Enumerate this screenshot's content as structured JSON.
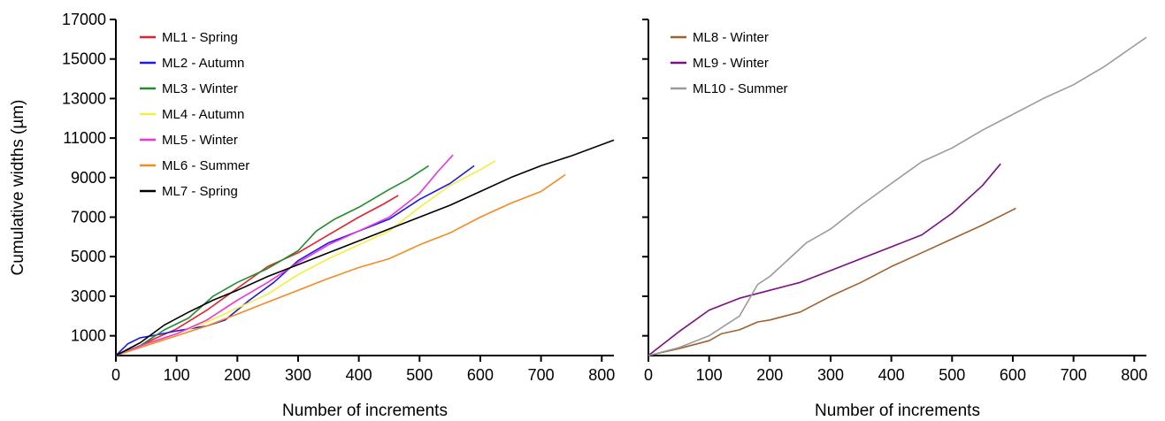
{
  "chart_data": [
    {
      "type": "line",
      "xlabel": "Number of increments",
      "ylabel": "Cumulative widths (µm)",
      "xlim": [
        0,
        820
      ],
      "ylim": [
        0,
        17000
      ],
      "xticks": [
        0,
        100,
        200,
        300,
        400,
        500,
        600,
        700,
        800
      ],
      "yticks": [
        1000,
        3000,
        5000,
        7000,
        9000,
        11000,
        13000,
        15000,
        17000
      ],
      "legend_position": "top-left",
      "series": [
        {
          "name": "ML1 - Spring",
          "color": "#e8212b",
          "x": [
            0,
            30,
            60,
            100,
            150,
            200,
            250,
            300,
            350,
            400,
            440,
            465
          ],
          "y": [
            0,
            350,
            800,
            1350,
            2300,
            3400,
            4500,
            5200,
            6100,
            7000,
            7650,
            8100
          ]
        },
        {
          "name": "ML2 - Autumn",
          "color": "#1a1aee",
          "x": [
            0,
            20,
            40,
            60,
            100,
            150,
            180,
            220,
            260,
            300,
            350,
            400,
            450,
            500,
            550,
            590
          ],
          "y": [
            0,
            600,
            900,
            1000,
            1250,
            1500,
            1800,
            2800,
            3700,
            4800,
            5700,
            6300,
            6900,
            7900,
            8700,
            9600
          ]
        },
        {
          "name": "ML3 - Winter",
          "color": "#1f8f2a",
          "x": [
            0,
            40,
            80,
            120,
            160,
            200,
            250,
            300,
            330,
            360,
            400,
            450,
            480,
            515
          ],
          "y": [
            0,
            500,
            1300,
            1900,
            3000,
            3700,
            4400,
            5300,
            6300,
            6900,
            7500,
            8400,
            8900,
            9600
          ]
        },
        {
          "name": "ML4 - Autumn",
          "color": "#f3f03a",
          "x": [
            0,
            50,
            100,
            150,
            200,
            250,
            300,
            350,
            400,
            450,
            500,
            550,
            600,
            625
          ],
          "y": [
            0,
            550,
            1100,
            1700,
            2400,
            3100,
            4100,
            4900,
            5600,
            6300,
            7500,
            8600,
            9400,
            9850
          ]
        },
        {
          "name": "ML5 - Winter",
          "color": "#f033e0",
          "x": [
            0,
            50,
            100,
            150,
            200,
            250,
            300,
            350,
            400,
            450,
            500,
            530,
            555
          ],
          "y": [
            0,
            600,
            1100,
            1800,
            2800,
            3700,
            4700,
            5600,
            6300,
            7000,
            8200,
            9300,
            10150
          ]
        },
        {
          "name": "ML6 - Summer",
          "color": "#f58a1f",
          "x": [
            0,
            50,
            100,
            150,
            200,
            250,
            300,
            350,
            400,
            450,
            500,
            550,
            600,
            650,
            700,
            740
          ],
          "y": [
            0,
            500,
            1000,
            1500,
            2100,
            2700,
            3300,
            3900,
            4450,
            4900,
            5600,
            6200,
            7000,
            7700,
            8300,
            9150
          ]
        },
        {
          "name": "ML7 - Spring",
          "color": "#000000",
          "x": [
            0,
            40,
            80,
            120,
            160,
            200,
            250,
            300,
            350,
            400,
            450,
            500,
            550,
            600,
            650,
            700,
            750,
            820
          ],
          "y": [
            0,
            650,
            1550,
            2200,
            2800,
            3300,
            4000,
            4600,
            5200,
            5800,
            6400,
            7000,
            7600,
            8300,
            9000,
            9600,
            10100,
            10900
          ]
        }
      ]
    },
    {
      "type": "line",
      "xlabel": "Number of increments",
      "ylabel": "",
      "xlim": [
        0,
        820
      ],
      "ylim": [
        0,
        17000
      ],
      "xticks": [
        0,
        100,
        200,
        300,
        400,
        500,
        600,
        700,
        800
      ],
      "yticks": [
        1000,
        3000,
        5000,
        7000,
        9000,
        11000,
        13000,
        15000,
        17000
      ],
      "legend_position": "top-left",
      "series": [
        {
          "name": "ML8 - Winter",
          "color": "#a0612d",
          "x": [
            0,
            50,
            100,
            120,
            150,
            180,
            200,
            250,
            300,
            350,
            400,
            450,
            500,
            550,
            605
          ],
          "y": [
            0,
            350,
            750,
            1100,
            1300,
            1700,
            1800,
            2200,
            3000,
            3700,
            4500,
            5200,
            5900,
            6600,
            7450
          ]
        },
        {
          "name": "ML9 - Winter",
          "color": "#7a0f86",
          "x": [
            0,
            50,
            100,
            150,
            200,
            250,
            300,
            350,
            400,
            450,
            500,
            550,
            580
          ],
          "y": [
            0,
            1200,
            2300,
            2900,
            3300,
            3700,
            4300,
            4900,
            5500,
            6100,
            7200,
            8600,
            9700
          ]
        },
        {
          "name": "ML10 - Summer",
          "color": "#9b9b9b",
          "x": [
            0,
            50,
            100,
            150,
            180,
            200,
            260,
            300,
            350,
            400,
            450,
            500,
            550,
            600,
            650,
            700,
            750,
            820
          ],
          "y": [
            0,
            400,
            1000,
            2000,
            3600,
            4000,
            5700,
            6400,
            7600,
            8700,
            9800,
            10500,
            11400,
            12200,
            13000,
            13700,
            14600,
            16100
          ]
        }
      ]
    }
  ]
}
